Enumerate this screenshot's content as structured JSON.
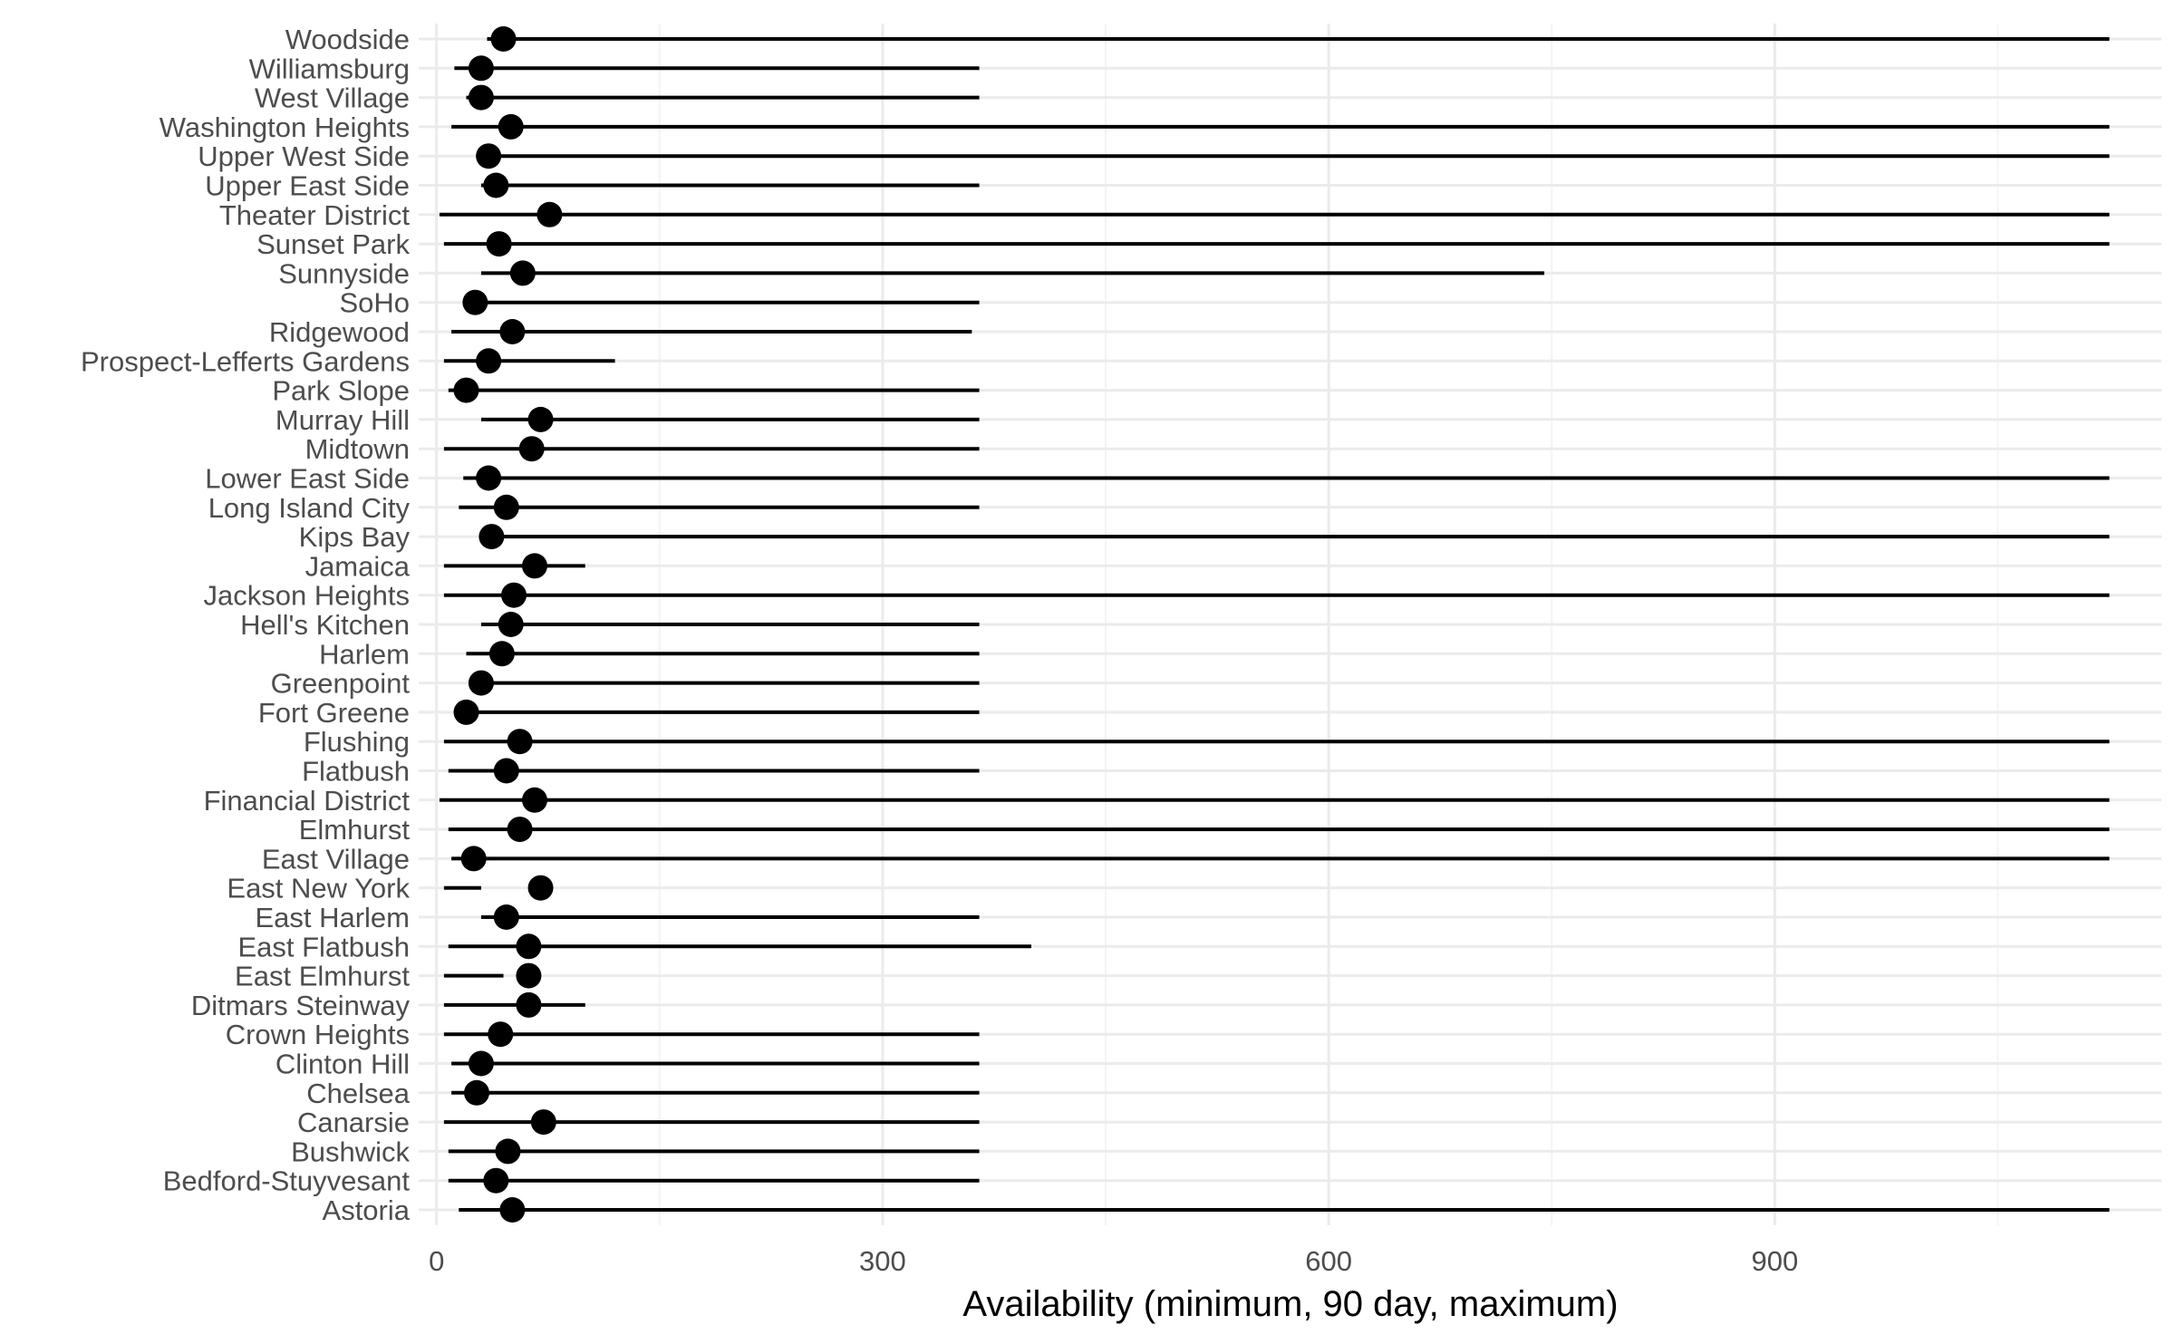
{
  "chart_data": {
    "type": "dot-range",
    "xlabel": "Availability (minimum, 90 day, maximum)",
    "ylabel": "",
    "title": "",
    "xlim": [
      -12,
      1160
    ],
    "x_ticks": [
      0,
      300,
      600,
      900
    ],
    "x_minor_ticks": [
      150,
      450,
      750,
      1050
    ],
    "grid": true,
    "legend": "none",
    "colors": {
      "line": "#000000",
      "point": "#000000",
      "grid_major": "#ebebeb",
      "grid_minor": "#f4f4f4",
      "text": "#4d4d4d"
    },
    "series": [
      {
        "neighbourhood": "Woodside",
        "min": 34,
        "avail_90": 45,
        "max": 1125
      },
      {
        "neighbourhood": "Williamsburg",
        "min": 12,
        "avail_90": 30,
        "max": 365
      },
      {
        "neighbourhood": "West Village",
        "min": 20,
        "avail_90": 30,
        "max": 365
      },
      {
        "neighbourhood": "Washington Heights",
        "min": 10,
        "avail_90": 50,
        "max": 1125
      },
      {
        "neighbourhood": "Upper West Side",
        "min": 30,
        "avail_90": 35,
        "max": 1125
      },
      {
        "neighbourhood": "Upper East Side",
        "min": 30,
        "avail_90": 40,
        "max": 365
      },
      {
        "neighbourhood": "Theater District",
        "min": 2,
        "avail_90": 76,
        "max": 1125
      },
      {
        "neighbourhood": "Sunset Park",
        "min": 5,
        "avail_90": 42,
        "max": 1125
      },
      {
        "neighbourhood": "Sunnyside",
        "min": 30,
        "avail_90": 58,
        "max": 745
      },
      {
        "neighbourhood": "SoHo",
        "min": 18,
        "avail_90": 26,
        "max": 365
      },
      {
        "neighbourhood": "Ridgewood",
        "min": 10,
        "avail_90": 51,
        "max": 360
      },
      {
        "neighbourhood": "Prospect-Lefferts Gardens",
        "min": 5,
        "avail_90": 35,
        "max": 120
      },
      {
        "neighbourhood": "Park Slope",
        "min": 8,
        "avail_90": 20,
        "max": 365
      },
      {
        "neighbourhood": "Murray Hill",
        "min": 30,
        "avail_90": 70,
        "max": 365
      },
      {
        "neighbourhood": "Midtown",
        "min": 5,
        "avail_90": 64,
        "max": 365
      },
      {
        "neighbourhood": "Lower East Side",
        "min": 18,
        "avail_90": 35,
        "max": 1125
      },
      {
        "neighbourhood": "Long Island City",
        "min": 15,
        "avail_90": 47,
        "max": 365
      },
      {
        "neighbourhood": "Kips Bay",
        "min": 30,
        "avail_90": 37,
        "max": 1125
      },
      {
        "neighbourhood": "Jamaica",
        "min": 5,
        "avail_90": 66,
        "max": 100
      },
      {
        "neighbourhood": "Jackson Heights",
        "min": 5,
        "avail_90": 52,
        "max": 1125
      },
      {
        "neighbourhood": "Hell's Kitchen",
        "min": 30,
        "avail_90": 50,
        "max": 365
      },
      {
        "neighbourhood": "Harlem",
        "min": 20,
        "avail_90": 44,
        "max": 365
      },
      {
        "neighbourhood": "Greenpoint",
        "min": 25,
        "avail_90": 30,
        "max": 365
      },
      {
        "neighbourhood": "Fort Greene",
        "min": 15,
        "avail_90": 20,
        "max": 365
      },
      {
        "neighbourhood": "Flushing",
        "min": 5,
        "avail_90": 56,
        "max": 1125
      },
      {
        "neighbourhood": "Flatbush",
        "min": 8,
        "avail_90": 47,
        "max": 365
      },
      {
        "neighbourhood": "Financial District",
        "min": 2,
        "avail_90": 66,
        "max": 1125
      },
      {
        "neighbourhood": "Elmhurst",
        "min": 8,
        "avail_90": 56,
        "max": 1125
      },
      {
        "neighbourhood": "East Village",
        "min": 10,
        "avail_90": 25,
        "max": 1125
      },
      {
        "neighbourhood": "East New York",
        "min": 5,
        "avail_90": 70,
        "max": 30
      },
      {
        "neighbourhood": "East Harlem",
        "min": 30,
        "avail_90": 47,
        "max": 365
      },
      {
        "neighbourhood": "East Flatbush",
        "min": 8,
        "avail_90": 62,
        "max": 400
      },
      {
        "neighbourhood": "East Elmhurst",
        "min": 5,
        "avail_90": 62,
        "max": 45
      },
      {
        "neighbourhood": "Ditmars Steinway",
        "min": 5,
        "avail_90": 62,
        "max": 100
      },
      {
        "neighbourhood": "Crown Heights",
        "min": 5,
        "avail_90": 43,
        "max": 365
      },
      {
        "neighbourhood": "Clinton Hill",
        "min": 10,
        "avail_90": 30,
        "max": 365
      },
      {
        "neighbourhood": "Chelsea",
        "min": 10,
        "avail_90": 27,
        "max": 365
      },
      {
        "neighbourhood": "Canarsie",
        "min": 5,
        "avail_90": 72,
        "max": 365
      },
      {
        "neighbourhood": "Bushwick",
        "min": 8,
        "avail_90": 48,
        "max": 365
      },
      {
        "neighbourhood": "Bedford-Stuyvesant",
        "min": 8,
        "avail_90": 40,
        "max": 365
      },
      {
        "neighbourhood": "Astoria",
        "min": 15,
        "avail_90": 51,
        "max": 1125
      }
    ]
  }
}
